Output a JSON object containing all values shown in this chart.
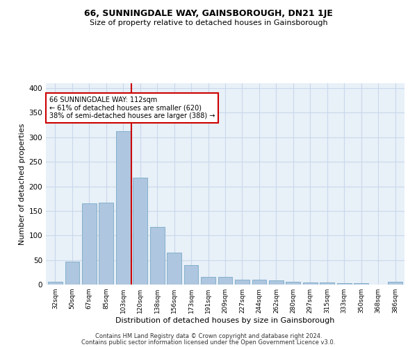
{
  "title": "66, SUNNINGDALE WAY, GAINSBOROUGH, DN21 1JE",
  "subtitle": "Size of property relative to detached houses in Gainsborough",
  "xlabel": "Distribution of detached houses by size in Gainsborough",
  "ylabel": "Number of detached properties",
  "footer_line1": "Contains HM Land Registry data © Crown copyright and database right 2024.",
  "footer_line2": "Contains public sector information licensed under the Open Government Licence v3.0.",
  "bins": [
    "32sqm",
    "50sqm",
    "67sqm",
    "85sqm",
    "103sqm",
    "120sqm",
    "138sqm",
    "156sqm",
    "173sqm",
    "191sqm",
    "209sqm",
    "227sqm",
    "244sqm",
    "262sqm",
    "280sqm",
    "297sqm",
    "315sqm",
    "333sqm",
    "350sqm",
    "368sqm",
    "386sqm"
  ],
  "values": [
    5,
    47,
    165,
    167,
    313,
    218,
    118,
    65,
    40,
    16,
    16,
    10,
    10,
    8,
    5,
    4,
    4,
    3,
    3,
    0,
    5
  ],
  "bar_color": "#aec6df",
  "bar_edge_color": "#7aaac8",
  "grid_color": "#c8d8ea",
  "background_color": "#e8f0f8",
  "vline_color": "#cc0000",
  "vline_x_index": 4.5,
  "annotation_text": "66 SUNNINGDALE WAY: 112sqm\n← 61% of detached houses are smaller (620)\n38% of semi-detached houses are larger (388) →",
  "annotation_box_facecolor": "#ffffff",
  "annotation_box_edgecolor": "#cc0000",
  "ylim": [
    0,
    410
  ],
  "yticks": [
    0,
    50,
    100,
    150,
    200,
    250,
    300,
    350,
    400
  ],
  "title_fontsize": 9,
  "subtitle_fontsize": 8,
  "footer_fontsize": 6,
  "ylabel_fontsize": 8,
  "xlabel_fontsize": 8
}
